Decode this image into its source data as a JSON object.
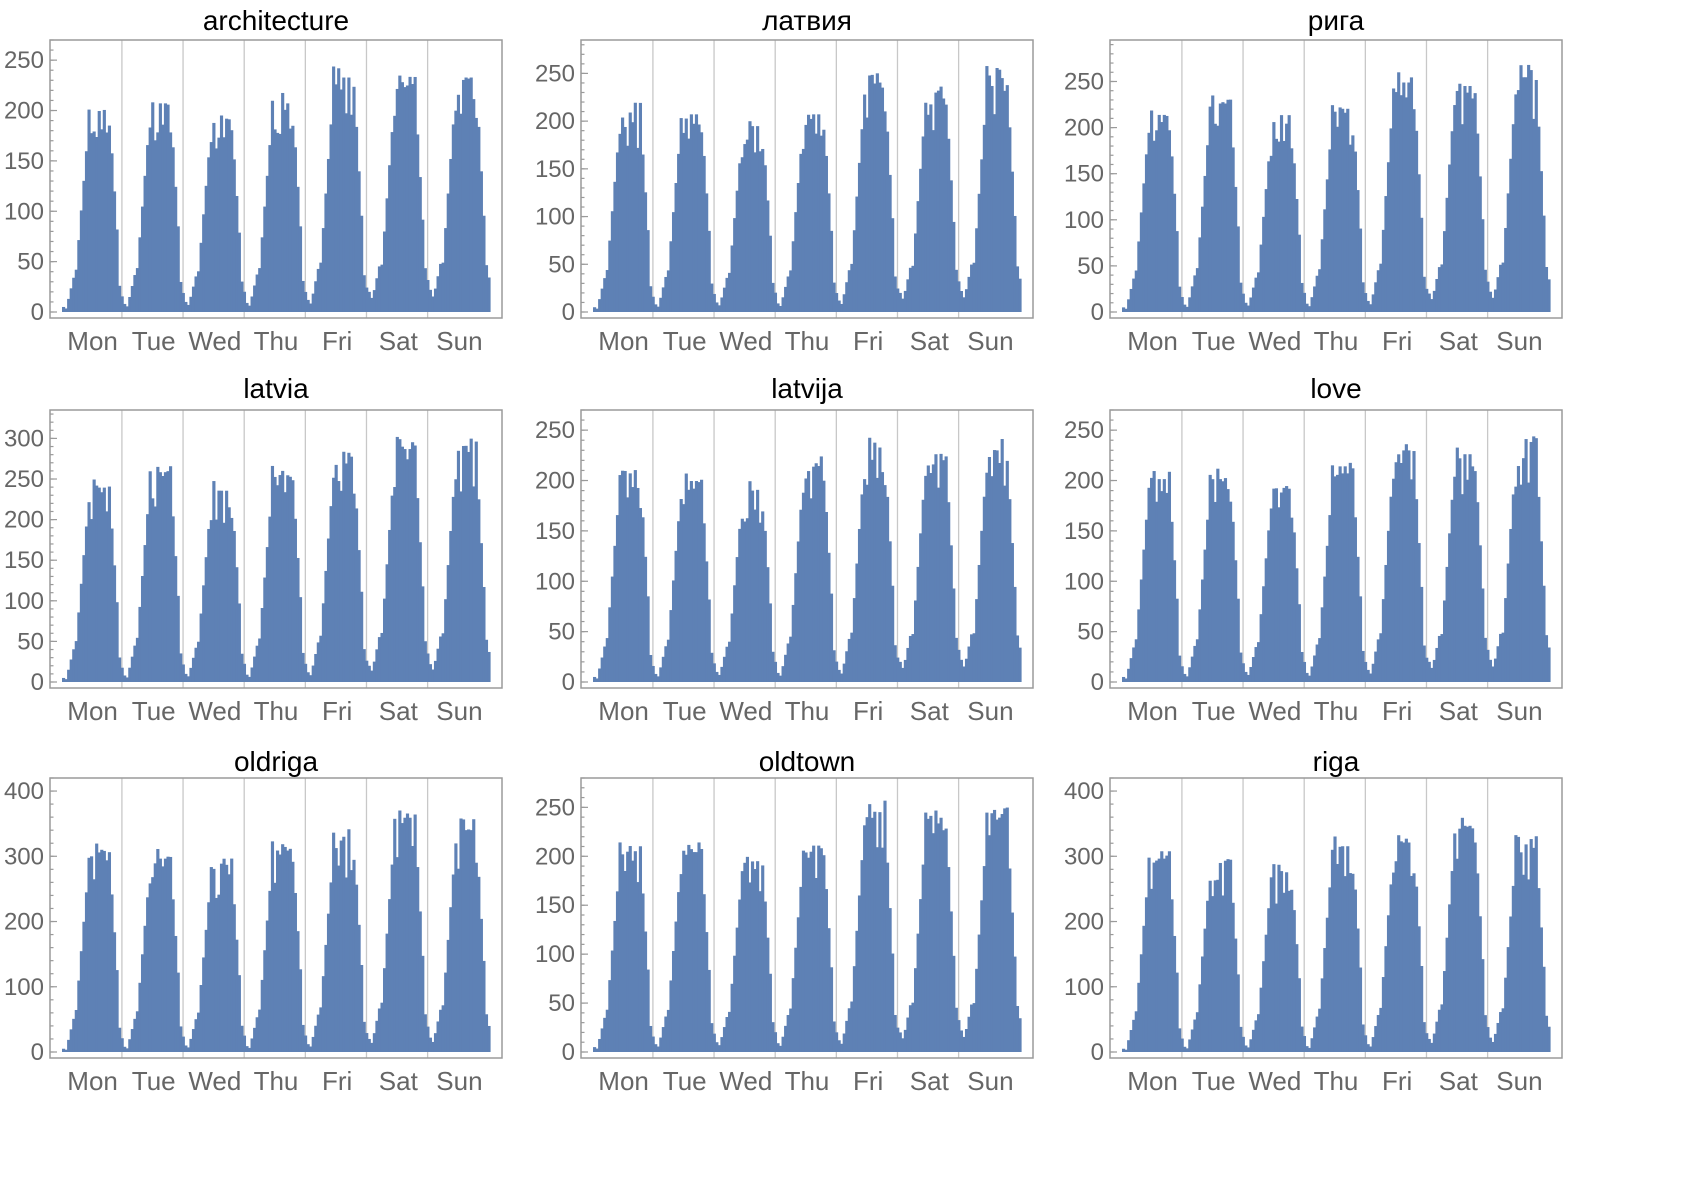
{
  "chart_data": [
    {
      "type": "bar",
      "title": "architecture",
      "categories": [
        "Mon",
        "Tue",
        "Wed",
        "Thu",
        "Fri",
        "Sat",
        "Sun"
      ],
      "ylim": [
        0,
        270
      ],
      "yticks": [
        0,
        50,
        100,
        150,
        200,
        250
      ],
      "day_peaks": [
        210,
        218,
        202,
        218,
        245,
        235,
        245
      ],
      "day_mins": [
        5,
        8,
        10,
        9,
        12,
        20,
        22
      ],
      "color": "#5e81b5"
    },
    {
      "type": "bar",
      "title": "латвия",
      "categories": [
        "Mon",
        "Tue",
        "Wed",
        "Thu",
        "Fri",
        "Sat",
        "Sun"
      ],
      "ylim": [
        0,
        285
      ],
      "yticks": [
        0,
        50,
        100,
        150,
        200,
        250
      ],
      "day_peaks": [
        220,
        218,
        205,
        218,
        252,
        242,
        258
      ],
      "day_mins": [
        5,
        8,
        10,
        9,
        12,
        20,
        22
      ],
      "color": "#5e81b5"
    },
    {
      "type": "bar",
      "title": "рига",
      "categories": [
        "Mon",
        "Tue",
        "Wed",
        "Thu",
        "Fri",
        "Sat",
        "Sun"
      ],
      "ylim": [
        0,
        295
      ],
      "yticks": [
        0,
        50,
        100,
        150,
        200,
        250
      ],
      "day_peaks": [
        225,
        238,
        215,
        232,
        262,
        258,
        268
      ],
      "day_mins": [
        5,
        8,
        10,
        9,
        12,
        20,
        22
      ],
      "color": "#5e81b5"
    },
    {
      "type": "bar",
      "title": "latvia",
      "categories": [
        "Mon",
        "Tue",
        "Wed",
        "Thu",
        "Fri",
        "Sat",
        "Sun"
      ],
      "ylim": [
        0,
        335
      ],
      "yticks": [
        0,
        50,
        100,
        150,
        200,
        250,
        300
      ],
      "day_peaks": [
        252,
        272,
        248,
        268,
        285,
        302,
        300
      ],
      "day_mins": [
        5,
        8,
        10,
        9,
        12,
        20,
        22
      ],
      "color": "#5e81b5"
    },
    {
      "type": "bar",
      "title": "latvija",
      "categories": [
        "Mon",
        "Tue",
        "Wed",
        "Thu",
        "Fri",
        "Sat",
        "Sun"
      ],
      "ylim": [
        0,
        270
      ],
      "yticks": [
        0,
        50,
        100,
        150,
        200,
        250
      ],
      "day_peaks": [
        218,
        210,
        200,
        225,
        245,
        238,
        242
      ],
      "day_mins": [
        5,
        8,
        10,
        9,
        12,
        20,
        22
      ],
      "color": "#5e81b5"
    },
    {
      "type": "bar",
      "title": "love",
      "categories": [
        "Mon",
        "Tue",
        "Wed",
        "Thu",
        "Fri",
        "Sat",
        "Sun"
      ],
      "ylim": [
        0,
        270
      ],
      "yticks": [
        0,
        50,
        100,
        150,
        200,
        250
      ],
      "day_peaks": [
        212,
        212,
        198,
        218,
        242,
        238,
        245
      ],
      "day_mins": [
        5,
        8,
        10,
        9,
        12,
        20,
        22
      ],
      "color": "#5e81b5"
    },
    {
      "type": "bar",
      "title": "oldriga",
      "categories": [
        "Mon",
        "Tue",
        "Wed",
        "Thu",
        "Fri",
        "Sat",
        "Sun"
      ],
      "ylim": [
        0,
        420
      ],
      "yticks": [
        0,
        100,
        200,
        300,
        400
      ],
      "day_peaks": [
        322,
        312,
        302,
        325,
        342,
        378,
        358
      ],
      "day_mins": [
        5,
        8,
        10,
        9,
        12,
        20,
        22
      ],
      "color": "#5e81b5"
    },
    {
      "type": "bar",
      "title": "oldtown",
      "categories": [
        "Mon",
        "Tue",
        "Wed",
        "Thu",
        "Fri",
        "Sat",
        "Sun"
      ],
      "ylim": [
        0,
        280
      ],
      "yticks": [
        0,
        50,
        100,
        150,
        200,
        250
      ],
      "day_peaks": [
        216,
        215,
        205,
        222,
        258,
        252,
        250
      ],
      "day_mins": [
        5,
        8,
        10,
        9,
        12,
        20,
        22
      ],
      "color": "#5e81b5"
    },
    {
      "type": "bar",
      "title": "riga",
      "categories": [
        "Mon",
        "Tue",
        "Wed",
        "Thu",
        "Fri",
        "Sat",
        "Sun"
      ],
      "ylim": [
        0,
        420
      ],
      "yticks": [
        0,
        100,
        200,
        300,
        400
      ],
      "day_peaks": [
        312,
        305,
        290,
        332,
        338,
        365,
        335
      ],
      "day_mins": [
        5,
        8,
        10,
        9,
        12,
        20,
        22
      ],
      "color": "#5e81b5"
    }
  ]
}
